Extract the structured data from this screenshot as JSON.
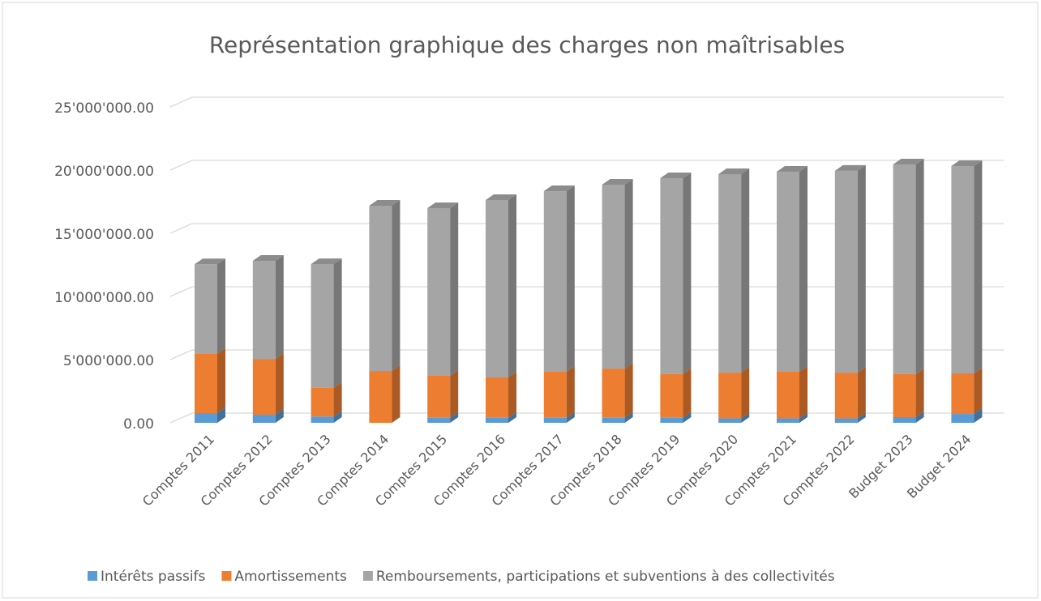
{
  "chart_data": {
    "type": "bar3d-stacked",
    "title": "Représentation graphique des charges non maîtrisables",
    "categories": [
      "Comptes 2011",
      "Comptes 2012",
      "Comptes 2013",
      "Comptes 2014",
      "Comptes 2015",
      "Comptes 2016",
      "Comptes 2017",
      "Comptes 2018",
      "Comptes 2019",
      "Comptes 2020",
      "Comptes 2021",
      "Comptes 2022",
      "Budget 2023",
      "Budget 2024"
    ],
    "series": [
      {
        "name": "Intérêts passifs",
        "color": "#5b9bd5",
        "values": [
          770000,
          640000,
          500000,
          0,
          400000,
          400000,
          400000,
          400000,
          400000,
          350000,
          350000,
          350000,
          450000,
          700000
        ]
      },
      {
        "name": "Amortissements",
        "color": "#ed7d31",
        "values": [
          4680000,
          4420000,
          2260000,
          4100000,
          3320000,
          3190000,
          3640000,
          3890000,
          3450000,
          3620000,
          3690000,
          3620000,
          3400000,
          3210000
        ]
      },
      {
        "name": "Remboursements, participations et subventions à des collectivités",
        "color": "#a5a5a5",
        "values": [
          7100000,
          7760000,
          9800000,
          13080000,
          13270000,
          14040000,
          14290000,
          14560000,
          15510000,
          15710000,
          15830000,
          15970000,
          16600000,
          16410000
        ]
      }
    ],
    "ylim": [
      0,
      25000000
    ],
    "yticks": [
      {
        "value": 0,
        "label": "0.00"
      },
      {
        "value": 5000000,
        "label": "5'000'000.00"
      },
      {
        "value": 10000000,
        "label": "10'000'000.00"
      },
      {
        "value": 15000000,
        "label": "15'000'000.00"
      },
      {
        "value": 20000000,
        "label": "20'000'000.00"
      },
      {
        "value": 25000000,
        "label": "25'000'000.00"
      }
    ],
    "grid": true,
    "legend": "bottom"
  }
}
